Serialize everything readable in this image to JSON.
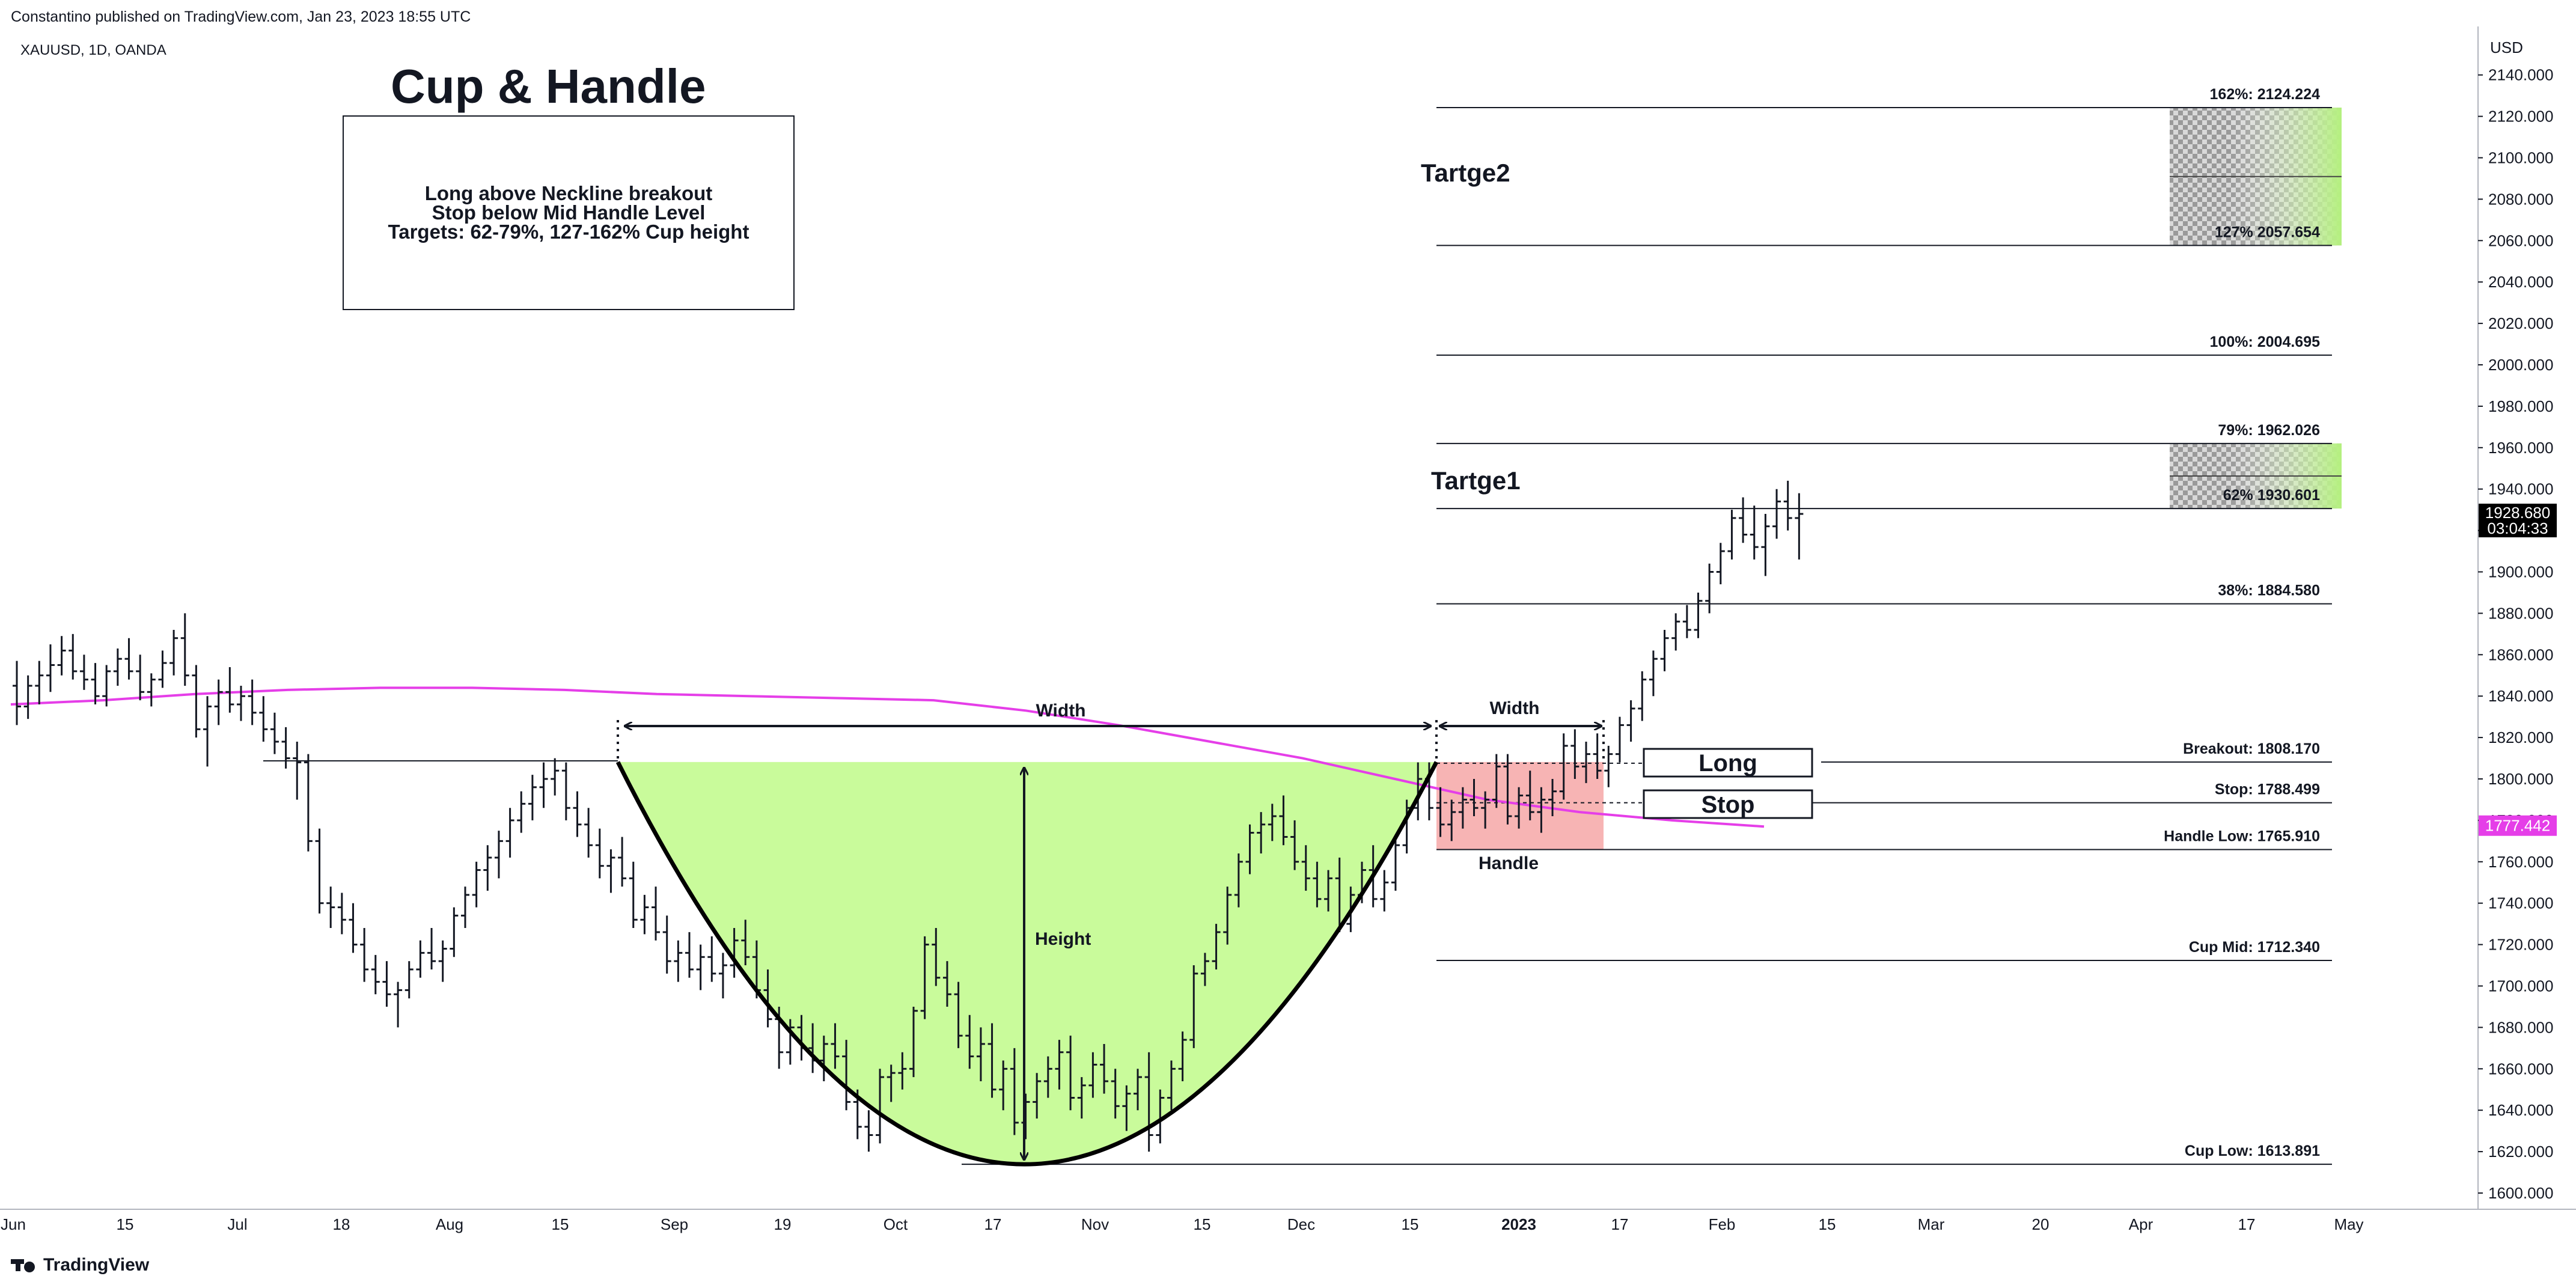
{
  "header": {
    "published": "Constantino published on TradingView.com, Jan 23, 2023 18:55 UTC",
    "symbol": "XAUUSD, 1D, OANDA"
  },
  "footer": {
    "brand": "TradingView",
    "brand_icon": "tradingview-logo-icon"
  },
  "title": "Cup & Handle",
  "note": {
    "lines": [
      "Long above Neckline breakout",
      "Stop below Mid Handle Level",
      "Targets: 62-79%, 127-162% Cup height"
    ]
  },
  "chart_data": {
    "type": "line",
    "currency_label": "USD",
    "x_ticks": [
      "Jun",
      "15",
      "Jul",
      "18",
      "Aug",
      "15",
      "Sep",
      "19",
      "Oct",
      "17",
      "Nov",
      "15",
      "Dec",
      "15",
      "2023",
      "17",
      "Feb",
      "15",
      "Mar",
      "20",
      "Apr",
      "17",
      "May"
    ],
    "y_ticks": [
      1600,
      1620,
      1640,
      1660,
      1680,
      1700,
      1720,
      1740,
      1760,
      1780,
      1800,
      1820,
      1840,
      1860,
      1880,
      1900,
      1920,
      1940,
      1960,
      1980,
      2000,
      2020,
      2040,
      2060,
      2080,
      2100,
      2120,
      2140
    ],
    "ylim": [
      1590,
      2148
    ],
    "last_price": {
      "value": "1928.680",
      "countdown": "03:04:33"
    },
    "ma_price": "1777.442",
    "colors": {
      "moving_average": "#e53ee8",
      "cup_fill": "#c9fb9b",
      "handle_fill": "#f7b4b4",
      "target_fill": "#b4f07e"
    },
    "levels": [
      {
        "label": "162%: 2124.224",
        "value": 2124.224
      },
      {
        "label": "127% 2057.654",
        "value": 2057.654
      },
      {
        "label": "100%: 2004.695",
        "value": 2004.695
      },
      {
        "label": "79%: 1962.026",
        "value": 1962.026
      },
      {
        "label": "62% 1930.601",
        "value": 1930.601
      },
      {
        "label": "38%: 1884.580",
        "value": 1884.58
      },
      {
        "label": "Breakout: 1808.170",
        "value": 1808.17
      },
      {
        "label": "Stop: 1788.499",
        "value": 1788.499
      },
      {
        "label": "Handle Low: 1765.910",
        "value": 1765.91
      },
      {
        "label": "Cup Mid: 1712.340",
        "value": 1712.34
      },
      {
        "label": "Cup Low: 1613.891",
        "value": 1613.891
      }
    ],
    "annotations": {
      "target2": "Tartge2",
      "target1": "Tartge1",
      "cup_width": "Width",
      "handle_width": "Width",
      "height": "Height",
      "handle": "Handle",
      "long": "Long",
      "stop": "Stop"
    },
    "moving_average": [
      [
        0,
        1836
      ],
      [
        10,
        1838
      ],
      [
        20,
        1841
      ],
      [
        30,
        1843
      ],
      [
        40,
        1844
      ],
      [
        50,
        1844
      ],
      [
        60,
        1843
      ],
      [
        70,
        1841
      ],
      [
        80,
        1840
      ],
      [
        90,
        1839
      ],
      [
        100,
        1838
      ],
      [
        110,
        1833
      ],
      [
        120,
        1826
      ],
      [
        130,
        1818
      ],
      [
        140,
        1810
      ],
      [
        150,
        1800
      ],
      [
        160,
        1790
      ],
      [
        170,
        1784
      ],
      [
        180,
        1780
      ],
      [
        190,
        1777
      ]
    ],
    "ohlc": [
      [
        0,
        1845,
        1857,
        1826,
        1835
      ],
      [
        1,
        1835,
        1850,
        1829,
        1845
      ],
      [
        2,
        1845,
        1857,
        1836,
        1850
      ],
      [
        3,
        1850,
        1865,
        1842,
        1855
      ],
      [
        4,
        1855,
        1869,
        1850,
        1862
      ],
      [
        5,
        1862,
        1870,
        1848,
        1852
      ],
      [
        6,
        1852,
        1860,
        1843,
        1848
      ],
      [
        7,
        1848,
        1856,
        1836,
        1840
      ],
      [
        8,
        1840,
        1855,
        1835,
        1852
      ],
      [
        9,
        1852,
        1863,
        1845,
        1858
      ],
      [
        10,
        1858,
        1868,
        1848,
        1852
      ],
      [
        11,
        1852,
        1860,
        1838,
        1842
      ],
      [
        12,
        1842,
        1851,
        1835,
        1848
      ],
      [
        13,
        1848,
        1862,
        1844,
        1856
      ],
      [
        14,
        1856,
        1872,
        1850,
        1868
      ],
      [
        15,
        1868,
        1880,
        1845,
        1850
      ],
      [
        16,
        1850,
        1855,
        1820,
        1824
      ],
      [
        17,
        1824,
        1840,
        1806,
        1835
      ],
      [
        18,
        1835,
        1848,
        1826,
        1842
      ],
      [
        19,
        1842,
        1854,
        1832,
        1836
      ],
      [
        20,
        1836,
        1845,
        1828,
        1840
      ],
      [
        21,
        1840,
        1848,
        1826,
        1832
      ],
      [
        22,
        1832,
        1840,
        1818,
        1824
      ],
      [
        23,
        1824,
        1832,
        1812,
        1818
      ],
      [
        24,
        1818,
        1825,
        1805,
        1810
      ],
      [
        25,
        1810,
        1818,
        1790,
        1808
      ],
      [
        26,
        1808,
        1812,
        1765,
        1770
      ],
      [
        27,
        1770,
        1776,
        1735,
        1740
      ],
      [
        28,
        1740,
        1748,
        1728,
        1738
      ],
      [
        29,
        1738,
        1745,
        1725,
        1732
      ],
      [
        30,
        1732,
        1740,
        1716,
        1720
      ],
      [
        31,
        1720,
        1728,
        1702,
        1708
      ],
      [
        32,
        1708,
        1715,
        1696,
        1702
      ],
      [
        33,
        1702,
        1712,
        1690,
        1696
      ],
      [
        34,
        1696,
        1702,
        1680,
        1698
      ],
      [
        35,
        1698,
        1712,
        1694,
        1708
      ],
      [
        36,
        1708,
        1722,
        1704,
        1716
      ],
      [
        37,
        1716,
        1728,
        1708,
        1712
      ],
      [
        38,
        1712,
        1722,
        1702,
        1718
      ],
      [
        39,
        1718,
        1738,
        1714,
        1734
      ],
      [
        40,
        1734,
        1748,
        1728,
        1744
      ],
      [
        41,
        1744,
        1760,
        1738,
        1756
      ],
      [
        42,
        1756,
        1768,
        1746,
        1762
      ],
      [
        43,
        1762,
        1775,
        1752,
        1770
      ],
      [
        44,
        1770,
        1786,
        1762,
        1780
      ],
      [
        45,
        1780,
        1794,
        1774,
        1788
      ],
      [
        46,
        1788,
        1802,
        1780,
        1796
      ],
      [
        47,
        1796,
        1808,
        1786,
        1800
      ],
      [
        48,
        1800,
        1810,
        1792,
        1804
      ],
      [
        49,
        1804,
        1808,
        1780,
        1786
      ],
      [
        50,
        1786,
        1794,
        1772,
        1778
      ],
      [
        51,
        1778,
        1786,
        1762,
        1768
      ],
      [
        52,
        1768,
        1776,
        1752,
        1758
      ],
      [
        53,
        1758,
        1766,
        1745,
        1762
      ],
      [
        54,
        1762,
        1772,
        1748,
        1752
      ],
      [
        55,
        1752,
        1760,
        1728,
        1732
      ],
      [
        56,
        1732,
        1744,
        1725,
        1738
      ],
      [
        57,
        1738,
        1748,
        1722,
        1726
      ],
      [
        58,
        1726,
        1734,
        1706,
        1712
      ],
      [
        59,
        1712,
        1722,
        1702,
        1716
      ],
      [
        60,
        1716,
        1726,
        1704,
        1708
      ],
      [
        61,
        1708,
        1720,
        1698,
        1714
      ],
      [
        62,
        1714,
        1724,
        1702,
        1706
      ],
      [
        63,
        1706,
        1716,
        1694,
        1710
      ],
      [
        64,
        1710,
        1728,
        1704,
        1722
      ],
      [
        65,
        1722,
        1732,
        1710,
        1714
      ],
      [
        66,
        1714,
        1722,
        1694,
        1698
      ],
      [
        67,
        1698,
        1708,
        1680,
        1684
      ],
      [
        68,
        1684,
        1690,
        1660,
        1668
      ],
      [
        69,
        1668,
        1684,
        1662,
        1680
      ],
      [
        70,
        1680,
        1686,
        1664,
        1670
      ],
      [
        71,
        1670,
        1682,
        1658,
        1664
      ],
      [
        72,
        1664,
        1676,
        1654,
        1672
      ],
      [
        73,
        1672,
        1682,
        1660,
        1666
      ],
      [
        74,
        1666,
        1674,
        1640,
        1644
      ],
      [
        75,
        1644,
        1650,
        1626,
        1632
      ],
      [
        76,
        1632,
        1640,
        1620,
        1628
      ],
      [
        77,
        1628,
        1660,
        1624,
        1656
      ],
      [
        78,
        1656,
        1662,
        1644,
        1658
      ],
      [
        79,
        1658,
        1668,
        1650,
        1660
      ],
      [
        80,
        1660,
        1690,
        1656,
        1688
      ],
      [
        81,
        1688,
        1724,
        1684,
        1720
      ],
      [
        82,
        1720,
        1728,
        1700,
        1704
      ],
      [
        83,
        1704,
        1712,
        1690,
        1696
      ],
      [
        84,
        1696,
        1702,
        1670,
        1676
      ],
      [
        85,
        1676,
        1686,
        1660,
        1666
      ],
      [
        86,
        1666,
        1680,
        1654,
        1672
      ],
      [
        87,
        1672,
        1682,
        1646,
        1650
      ],
      [
        88,
        1650,
        1664,
        1640,
        1660
      ],
      [
        89,
        1660,
        1670,
        1628,
        1634
      ],
      [
        90,
        1634,
        1648,
        1626,
        1644
      ],
      [
        91,
        1644,
        1658,
        1636,
        1654
      ],
      [
        92,
        1654,
        1666,
        1646,
        1660
      ],
      [
        93,
        1660,
        1674,
        1650,
        1668
      ],
      [
        94,
        1668,
        1676,
        1640,
        1646
      ],
      [
        95,
        1646,
        1656,
        1636,
        1652
      ],
      [
        96,
        1652,
        1668,
        1646,
        1662
      ],
      [
        97,
        1662,
        1672,
        1648,
        1654
      ],
      [
        98,
        1654,
        1660,
        1636,
        1642
      ],
      [
        99,
        1642,
        1652,
        1630,
        1648
      ],
      [
        100,
        1648,
        1660,
        1640,
        1656
      ],
      [
        101,
        1656,
        1668,
        1620,
        1628
      ],
      [
        102,
        1628,
        1650,
        1624,
        1646
      ],
      [
        103,
        1646,
        1664,
        1640,
        1660
      ],
      [
        104,
        1660,
        1678,
        1654,
        1674
      ],
      [
        105,
        1674,
        1710,
        1670,
        1706
      ],
      [
        106,
        1706,
        1716,
        1700,
        1712
      ],
      [
        107,
        1712,
        1730,
        1708,
        1726
      ],
      [
        108,
        1726,
        1748,
        1720,
        1744
      ],
      [
        109,
        1744,
        1764,
        1738,
        1760
      ],
      [
        110,
        1760,
        1778,
        1754,
        1774
      ],
      [
        111,
        1774,
        1784,
        1764,
        1778
      ],
      [
        112,
        1778,
        1788,
        1770,
        1782
      ],
      [
        113,
        1782,
        1792,
        1768,
        1772
      ],
      [
        114,
        1772,
        1780,
        1756,
        1760
      ],
      [
        115,
        1760,
        1768,
        1746,
        1752
      ],
      [
        116,
        1752,
        1760,
        1738,
        1742
      ],
      [
        117,
        1742,
        1756,
        1736,
        1752
      ],
      [
        118,
        1752,
        1762,
        1726,
        1730
      ],
      [
        119,
        1730,
        1748,
        1726,
        1744
      ],
      [
        120,
        1744,
        1760,
        1740,
        1756
      ],
      [
        121,
        1756,
        1768,
        1738,
        1742
      ],
      [
        122,
        1742,
        1756,
        1736,
        1750
      ],
      [
        123,
        1750,
        1772,
        1746,
        1768
      ],
      [
        124,
        1768,
        1790,
        1764,
        1786
      ],
      [
        125,
        1786,
        1808,
        1780,
        1800
      ],
      [
        126,
        1800,
        1808,
        1780,
        1786
      ],
      [
        127,
        1786,
        1796,
        1772,
        1778
      ],
      [
        128,
        1778,
        1790,
        1770,
        1784
      ],
      [
        129,
        1784,
        1796,
        1776,
        1790
      ],
      [
        130,
        1790,
        1800,
        1782,
        1786
      ],
      [
        131,
        1786,
        1794,
        1776,
        1790
      ],
      [
        132,
        1790,
        1812,
        1786,
        1806
      ],
      [
        133,
        1806,
        1812,
        1778,
        1782
      ],
      [
        134,
        1782,
        1796,
        1776,
        1792
      ],
      [
        135,
        1792,
        1804,
        1780,
        1784
      ],
      [
        136,
        1784,
        1796,
        1774,
        1790
      ],
      [
        137,
        1790,
        1800,
        1782,
        1794
      ],
      [
        138,
        1794,
        1822,
        1790,
        1816
      ],
      [
        139,
        1816,
        1824,
        1800,
        1806
      ],
      [
        140,
        1806,
        1818,
        1798,
        1812
      ],
      [
        141,
        1812,
        1822,
        1800,
        1804
      ],
      [
        142,
        1804,
        1816,
        1796,
        1812
      ],
      [
        143,
        1812,
        1830,
        1808,
        1826
      ],
      [
        144,
        1826,
        1838,
        1818,
        1834
      ],
      [
        145,
        1834,
        1852,
        1828,
        1848
      ],
      [
        146,
        1848,
        1862,
        1840,
        1858
      ],
      [
        147,
        1858,
        1872,
        1852,
        1868
      ],
      [
        148,
        1868,
        1880,
        1862,
        1876
      ],
      [
        149,
        1876,
        1884,
        1868,
        1872
      ],
      [
        150,
        1872,
        1890,
        1868,
        1886
      ],
      [
        151,
        1886,
        1904,
        1880,
        1900
      ],
      [
        152,
        1900,
        1914,
        1894,
        1910
      ],
      [
        153,
        1910,
        1930,
        1906,
        1926
      ],
      [
        154,
        1926,
        1936,
        1914,
        1918
      ],
      [
        155,
        1918,
        1932,
        1906,
        1912
      ],
      [
        156,
        1912,
        1928,
        1898,
        1922
      ],
      [
        157,
        1922,
        1940,
        1916,
        1934
      ],
      [
        158,
        1934,
        1944,
        1920,
        1926
      ],
      [
        159,
        1926,
        1938,
        1906,
        1928
      ]
    ]
  }
}
